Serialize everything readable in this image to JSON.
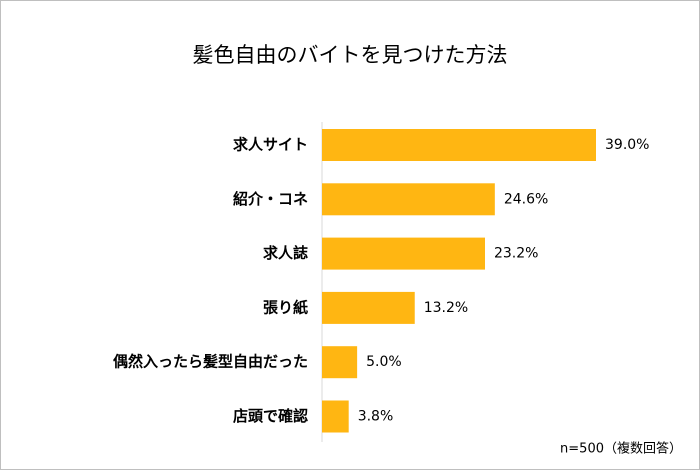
{
  "chart_data": {
    "type": "bar",
    "orientation": "horizontal",
    "title": "髪色自由のバイトを見つけた方法",
    "categories": [
      "求人サイト",
      "紹介・コネ",
      "求人誌",
      "張り紙",
      "偶然入ったら髪型自由だった",
      "店頭で確認"
    ],
    "values": [
      39.0,
      24.6,
      23.2,
      13.2,
      5.0,
      3.8
    ],
    "value_labels": [
      "39.0%",
      "24.6%",
      "23.2%",
      "13.2%",
      "5.0%",
      "3.8%"
    ],
    "color": "#FFB612",
    "note": "n=500（複数回答）"
  }
}
